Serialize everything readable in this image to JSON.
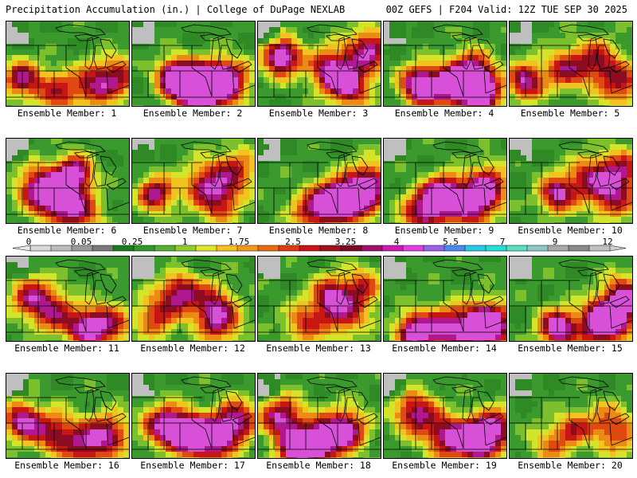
{
  "header": {
    "left": "Precipitation Accumulation (in.) | College of DuPage NEXLAB",
    "right": "00Z GEFS | F204 Valid: 12Z TUE SEP 30 2025"
  },
  "members": [
    {
      "label": "Ensemble Member: 1",
      "hot": [
        [
          20,
          72
        ],
        [
          65,
          88
        ],
        [
          110,
          80
        ],
        [
          140,
          70
        ]
      ],
      "peak": 0.7
    },
    {
      "label": "Ensemble Member: 2",
      "hot": [
        [
          55,
          70
        ],
        [
          95,
          78
        ],
        [
          120,
          75
        ],
        [
          80,
          90
        ]
      ],
      "peak": 1.0
    },
    {
      "label": "Ensemble Member: 3",
      "hot": [
        [
          30,
          45
        ],
        [
          90,
          60
        ],
        [
          115,
          80
        ],
        [
          140,
          35
        ]
      ],
      "peak": 0.95
    },
    {
      "label": "Ensemble Member: 4",
      "hot": [
        [
          45,
          80
        ],
        [
          85,
          82
        ],
        [
          110,
          65
        ],
        [
          125,
          90
        ]
      ],
      "peak": 1.0
    },
    {
      "label": "Ensemble Member: 5",
      "hot": [
        [
          20,
          75
        ],
        [
          70,
          60
        ],
        [
          110,
          50
        ],
        [
          140,
          80
        ]
      ],
      "peak": 0.75
    },
    {
      "label": "Ensemble Member: 6",
      "hot": [
        [
          85,
          45
        ],
        [
          90,
          92
        ],
        [
          40,
          60
        ],
        [
          60,
          75
        ]
      ],
      "peak": 0.85
    },
    {
      "label": "Ensemble Member: 7",
      "hot": [
        [
          30,
          70
        ],
        [
          90,
          55
        ],
        [
          130,
          40
        ],
        [
          110,
          80
        ]
      ],
      "peak": 0.7
    },
    {
      "label": "Ensemble Member: 8",
      "hot": [
        [
          100,
          75
        ],
        [
          125,
          80
        ],
        [
          140,
          55
        ],
        [
          70,
          90
        ]
      ],
      "peak": 0.9
    },
    {
      "label": "Ensemble Member: 9",
      "hot": [
        [
          75,
          70
        ],
        [
          110,
          85
        ],
        [
          130,
          60
        ],
        [
          50,
          92
        ]
      ],
      "peak": 0.95
    },
    {
      "label": "Ensemble Member: 10",
      "hot": [
        [
          60,
          70
        ],
        [
          100,
          50
        ],
        [
          140,
          40
        ],
        [
          130,
          75
        ]
      ],
      "peak": 0.75
    },
    {
      "label": "Ensemble Member: 11",
      "hot": [
        [
          100,
          90
        ],
        [
          130,
          85
        ],
        [
          60,
          70
        ],
        [
          30,
          50
        ]
      ],
      "peak": 0.75
    },
    {
      "label": "Ensemble Member: 12",
      "hot": [
        [
          60,
          45
        ],
        [
          100,
          60
        ],
        [
          110,
          85
        ],
        [
          30,
          75
        ]
      ],
      "peak": 0.7
    },
    {
      "label": "Ensemble Member: 13",
      "hot": [
        [
          90,
          50
        ],
        [
          110,
          75
        ],
        [
          60,
          85
        ],
        [
          130,
          40
        ]
      ],
      "peak": 0.65
    },
    {
      "label": "Ensemble Member: 14",
      "hot": [
        [
          40,
          95
        ],
        [
          80,
          90
        ],
        [
          120,
          90
        ],
        [
          135,
          85
        ]
      ],
      "peak": 0.95
    },
    {
      "label": "Ensemble Member: 15",
      "hot": [
        [
          60,
          90
        ],
        [
          110,
          85
        ],
        [
          130,
          78
        ],
        [
          145,
          50
        ]
      ],
      "peak": 0.9
    },
    {
      "label": "Ensemble Member: 16",
      "hot": [
        [
          20,
          60
        ],
        [
          100,
          90
        ],
        [
          130,
          75
        ],
        [
          60,
          75
        ]
      ],
      "peak": 0.8
    },
    {
      "label": "Ensemble Member: 17",
      "hot": [
        [
          70,
          75
        ],
        [
          100,
          85
        ],
        [
          40,
          65
        ],
        [
          130,
          60
        ]
      ],
      "peak": 1.0
    },
    {
      "label": "Ensemble Member: 18",
      "hot": [
        [
          50,
          95
        ],
        [
          80,
          85
        ],
        [
          30,
          55
        ],
        [
          110,
          70
        ]
      ],
      "peak": 1.0
    },
    {
      "label": "Ensemble Member: 19",
      "hot": [
        [
          115,
          85
        ],
        [
          80,
          80
        ],
        [
          40,
          50
        ],
        [
          140,
          70
        ]
      ],
      "peak": 0.95
    },
    {
      "label": "Ensemble Member: 20",
      "hot": [
        [
          80,
          70
        ],
        [
          120,
          60
        ],
        [
          140,
          80
        ],
        [
          50,
          90
        ]
      ],
      "peak": 0.45
    }
  ],
  "colorbar": {
    "ticks": [
      "0",
      "0.05",
      "0.25",
      "1",
      "1.75",
      "2.5",
      "3.25",
      "4",
      "5.5",
      "7",
      "9",
      "12"
    ],
    "colors": [
      "#d8d8d8",
      "#bcbcbc",
      "#9a9a9a",
      "#7a7a7a",
      "#1e7a1e",
      "#2f9a2a",
      "#56b030",
      "#8fcc2c",
      "#dde82a",
      "#f6c01e",
      "#f29a18",
      "#ea6a14",
      "#e03a12",
      "#cc1414",
      "#a0101a",
      "#7a0a24",
      "#a0106a",
      "#d01ab4",
      "#e040e0",
      "#9a60e8",
      "#4a8af0",
      "#28c8e8",
      "#20e0d8",
      "#5ae0c0",
      "#8cc8c8",
      "#a8a8a8",
      "#8a8a8a",
      "#c0c0c0"
    ],
    "scale": [
      "#3b9a2d",
      "#7cc02e",
      "#d4e42a",
      "#f2c21e",
      "#ec8a16",
      "#e04a12",
      "#c81614",
      "#8c0c22",
      "#b01890",
      "#d850d8"
    ]
  }
}
